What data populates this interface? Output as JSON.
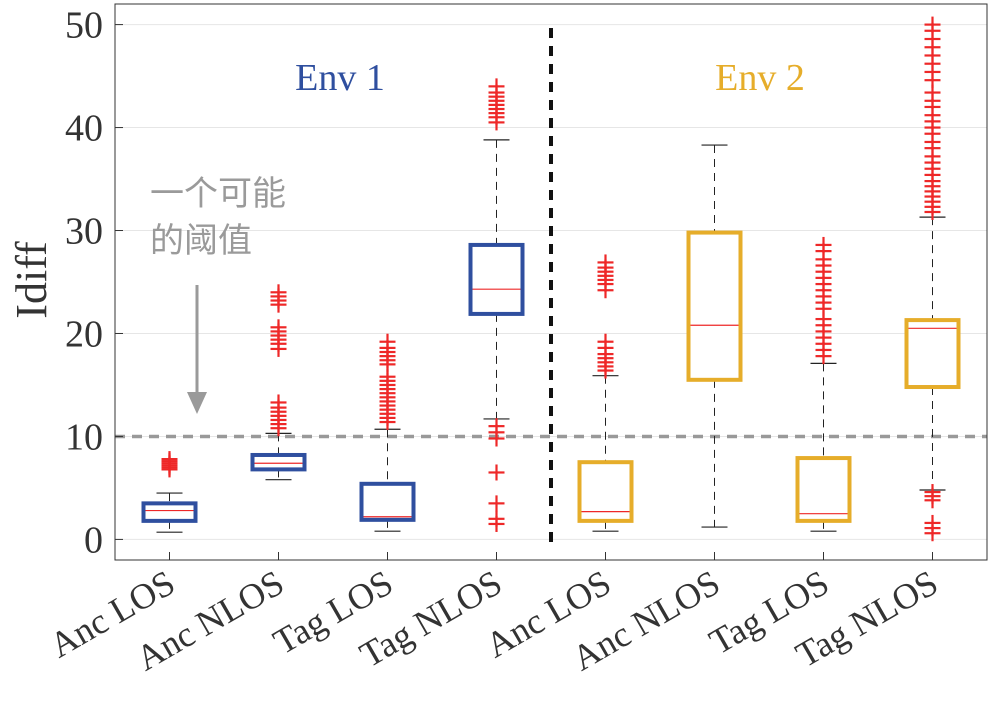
{
  "chart_data": {
    "type": "box",
    "ylabel": "Idiff",
    "ylim": [
      -2,
      52
    ],
    "yticks": [
      0,
      10,
      20,
      30,
      40,
      50
    ],
    "grid": true,
    "threshold": {
      "value": 10,
      "label_line1": "一个可能",
      "label_line2": "的阈值",
      "color": "#999999"
    },
    "groups": [
      {
        "label": "Env 1",
        "color": "#2f4f9f"
      },
      {
        "label": "Env 2",
        "color": "#e6ad2a"
      }
    ],
    "outlier_color": "#ee2828",
    "boxes": [
      {
        "category": "Anc LOS",
        "env": 0,
        "q1": 1.8,
        "median": 2.8,
        "q3": 3.5,
        "wlo": 0.7,
        "whi": 4.5,
        "outliers": [
          6.8,
          7.0,
          7.2,
          7.4,
          7.6,
          7.8
        ]
      },
      {
        "category": "Anc NLOS",
        "env": 0,
        "q1": 6.8,
        "median": 7.4,
        "q3": 8.2,
        "wlo": 5.8,
        "whi": 10.3,
        "outliers": [
          10.8,
          11.2,
          11.6,
          12.0,
          12.4,
          12.8,
          13.3,
          18.5,
          19.0,
          19.4,
          19.8,
          20.2,
          20.6,
          22.8,
          23.2,
          23.6,
          24.0
        ]
      },
      {
        "category": "Tag LOS",
        "env": 0,
        "q1": 1.9,
        "median": 2.2,
        "q3": 5.4,
        "wlo": 0.8,
        "whi": 10.7,
        "outliers": [
          11.4,
          11.8,
          12.2,
          12.6,
          13.0,
          13.4,
          13.8,
          14.2,
          14.6,
          15.0,
          15.4,
          15.8,
          17.0,
          17.4,
          17.8,
          18.2,
          18.6,
          19.2
        ]
      },
      {
        "category": "Tag NLOS",
        "env": 0,
        "q1": 21.9,
        "median": 24.3,
        "q3": 28.6,
        "wlo": 11.7,
        "whi": 38.8,
        "outliers": [
          1.5,
          2.0,
          3.5,
          6.5,
          9.8,
          10.4,
          11.0,
          40.5,
          41.0,
          41.4,
          41.8,
          42.2,
          42.6,
          43.0,
          43.4,
          44.0
        ]
      },
      {
        "category": "Anc LOS",
        "env": 1,
        "q1": 1.8,
        "median": 2.7,
        "q3": 7.5,
        "wlo": 0.8,
        "whi": 15.9,
        "outliers": [
          16.4,
          16.8,
          17.2,
          17.6,
          18.0,
          18.6,
          19.2,
          24.2,
          24.8,
          25.2,
          25.6,
          26.0,
          26.4,
          26.9
        ]
      },
      {
        "category": "Anc NLOS",
        "env": 1,
        "q1": 15.5,
        "median": 20.8,
        "q3": 29.8,
        "wlo": 1.2,
        "whi": 38.3,
        "outliers": []
      },
      {
        "category": "Tag LOS",
        "env": 1,
        "q1": 1.8,
        "median": 2.5,
        "q3": 7.9,
        "wlo": 0.8,
        "whi": 17.1,
        "outliers": [
          17.8,
          18.4,
          19.0,
          19.6,
          20.2,
          20.8,
          21.4,
          22.4,
          23.0,
          23.6,
          24.2,
          24.8,
          25.4,
          26.0,
          26.6,
          27.2,
          28.0,
          28.6
        ]
      },
      {
        "category": "Tag NLOS",
        "env": 1,
        "q1": 14.8,
        "median": 20.5,
        "q3": 21.3,
        "wlo": 4.8,
        "whi": 31.3,
        "outliers": [
          0.6,
          1.1,
          1.6,
          3.8,
          4.2,
          4.6,
          31.8,
          32.3,
          32.8,
          33.3,
          33.8,
          34.3,
          34.8,
          35.4,
          36.0,
          36.6,
          37.2,
          38.0,
          38.6,
          39.4,
          40.0,
          40.6,
          41.2,
          42.0,
          42.6,
          43.4,
          44.6,
          45.4,
          46.2,
          47.0,
          47.8,
          48.6,
          49.4,
          50.0
        ]
      }
    ]
  }
}
